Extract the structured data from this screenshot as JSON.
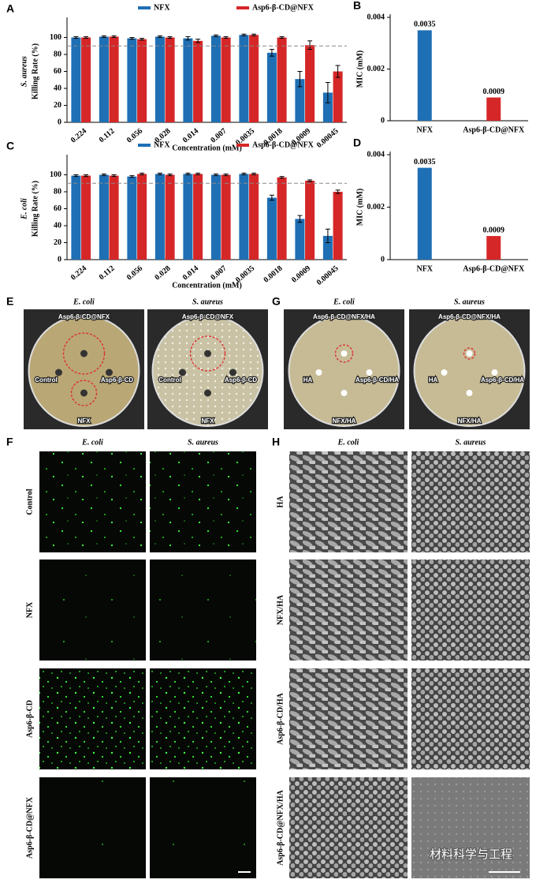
{
  "chart_data": [
    {
      "type": "bar",
      "panel": "A",
      "ylabel_species": "S. aureus",
      "y_label": "Killing Rate (%)",
      "x_label": "Concentration (mM)",
      "categories": [
        "0.224",
        "0.112",
        "0.056",
        "0.028",
        "0.014",
        "0.007",
        "0.0035",
        "0.0018",
        "0.0009",
        "0.00045"
      ],
      "series": [
        {
          "name": "NFX",
          "color": "#1f6fb5",
          "values": [
            100,
            101,
            99,
            101,
            99,
            102,
            103,
            82,
            51,
            35
          ],
          "errors": [
            1,
            1,
            1,
            1,
            2,
            1,
            1,
            4,
            9,
            12
          ]
        },
        {
          "name": "Asp6-β-CD@NFX",
          "color": "#d62728",
          "values": [
            100,
            101,
            98,
            100,
            96,
            100,
            103,
            100,
            91,
            60
          ],
          "errors": [
            1,
            1,
            1,
            1,
            2,
            1,
            1,
            1,
            5,
            7
          ]
        }
      ],
      "ylim": [
        0,
        120
      ],
      "yticks": [
        0,
        20,
        40,
        60,
        80,
        100
      ],
      "reference_line": 90
    },
    {
      "type": "bar",
      "panel": "B",
      "y_label": "MIC (mM)",
      "categories": [
        "NFX",
        "Asp6-β-CD@NFX"
      ],
      "values": [
        0.0035,
        0.0009
      ],
      "colors": [
        "#1f6fb5",
        "#d62728"
      ],
      "ylim": [
        0,
        0.004
      ],
      "yticks": [
        0,
        0.002,
        0.004
      ]
    },
    {
      "type": "bar",
      "panel": "C",
      "ylabel_species": "E. coli",
      "y_label": "Killing Rate (%)",
      "x_label": "Concentration (mM)",
      "categories": [
        "0.224",
        "0.112",
        "0.056",
        "0.028",
        "0.014",
        "0.007",
        "0.0035",
        "0.0018",
        "0.0009",
        "0.00045"
      ],
      "series": [
        {
          "name": "NFX",
          "color": "#1f6fb5",
          "values": [
            99,
            100,
            98,
            101,
            101,
            100,
            101,
            73,
            48,
            28
          ],
          "errors": [
            1,
            1,
            1,
            1,
            1,
            1,
            1,
            3,
            4,
            8
          ]
        },
        {
          "name": "Asp6-β-CD@NFX",
          "color": "#d62728",
          "values": [
            99,
            99,
            101,
            100,
            101,
            100,
            101,
            97,
            93,
            80
          ],
          "errors": [
            1,
            1,
            1,
            1,
            1,
            1,
            1,
            1,
            1,
            2
          ]
        }
      ],
      "ylim": [
        0,
        120
      ],
      "yticks": [
        0,
        20,
        40,
        60,
        80,
        100
      ],
      "reference_line": 90
    },
    {
      "type": "bar",
      "panel": "D",
      "y_label": "MIC (mM)",
      "categories": [
        "NFX",
        "Asp6-β-CD@NFX"
      ],
      "values": [
        0.0035,
        0.0009
      ],
      "colors": [
        "#1f6fb5",
        "#d62728"
      ],
      "ylim": [
        0,
        0.004
      ],
      "yticks": [
        0,
        0.002,
        0.004
      ]
    }
  ],
  "panels": {
    "E": {
      "letter": "E",
      "columns": [
        "E. coli",
        "S. aureus"
      ],
      "plate_labels": [
        [
          "Asp6-β-CD@NFX",
          "Control",
          "Asp6-β-CD",
          "NFX"
        ],
        [
          "Asp6-β-CD@NFX",
          "Control",
          "Asp6-β-CD",
          "NFX"
        ]
      ]
    },
    "G": {
      "letter": "G",
      "columns": [
        "E. coli",
        "S. aureus"
      ],
      "plate_labels": [
        [
          "Asp6-β-CD@NFX/HA",
          "HA",
          "Asp6-β-CD/HA",
          "NFX/HA"
        ],
        [
          "Asp6-β-CD@NFX/HA",
          "HA",
          "Asp6-β-CD/HA",
          "NFX/HA"
        ]
      ]
    },
    "F": {
      "letter": "F",
      "columns": [
        "E. coli",
        "S. aureus"
      ],
      "rows": [
        "Control",
        "NFX",
        "Asp6-β-CD",
        "Asp6-β-CD@NFX"
      ]
    },
    "H": {
      "letter": "H",
      "columns": [
        "E. coli",
        "S. aureus"
      ],
      "rows": [
        "HA",
        "NFX/HA",
        "Asp6-β-CD/HA",
        "Asp6-β-CD@NFX/HA"
      ]
    }
  },
  "watermark": "材料科学与工程"
}
